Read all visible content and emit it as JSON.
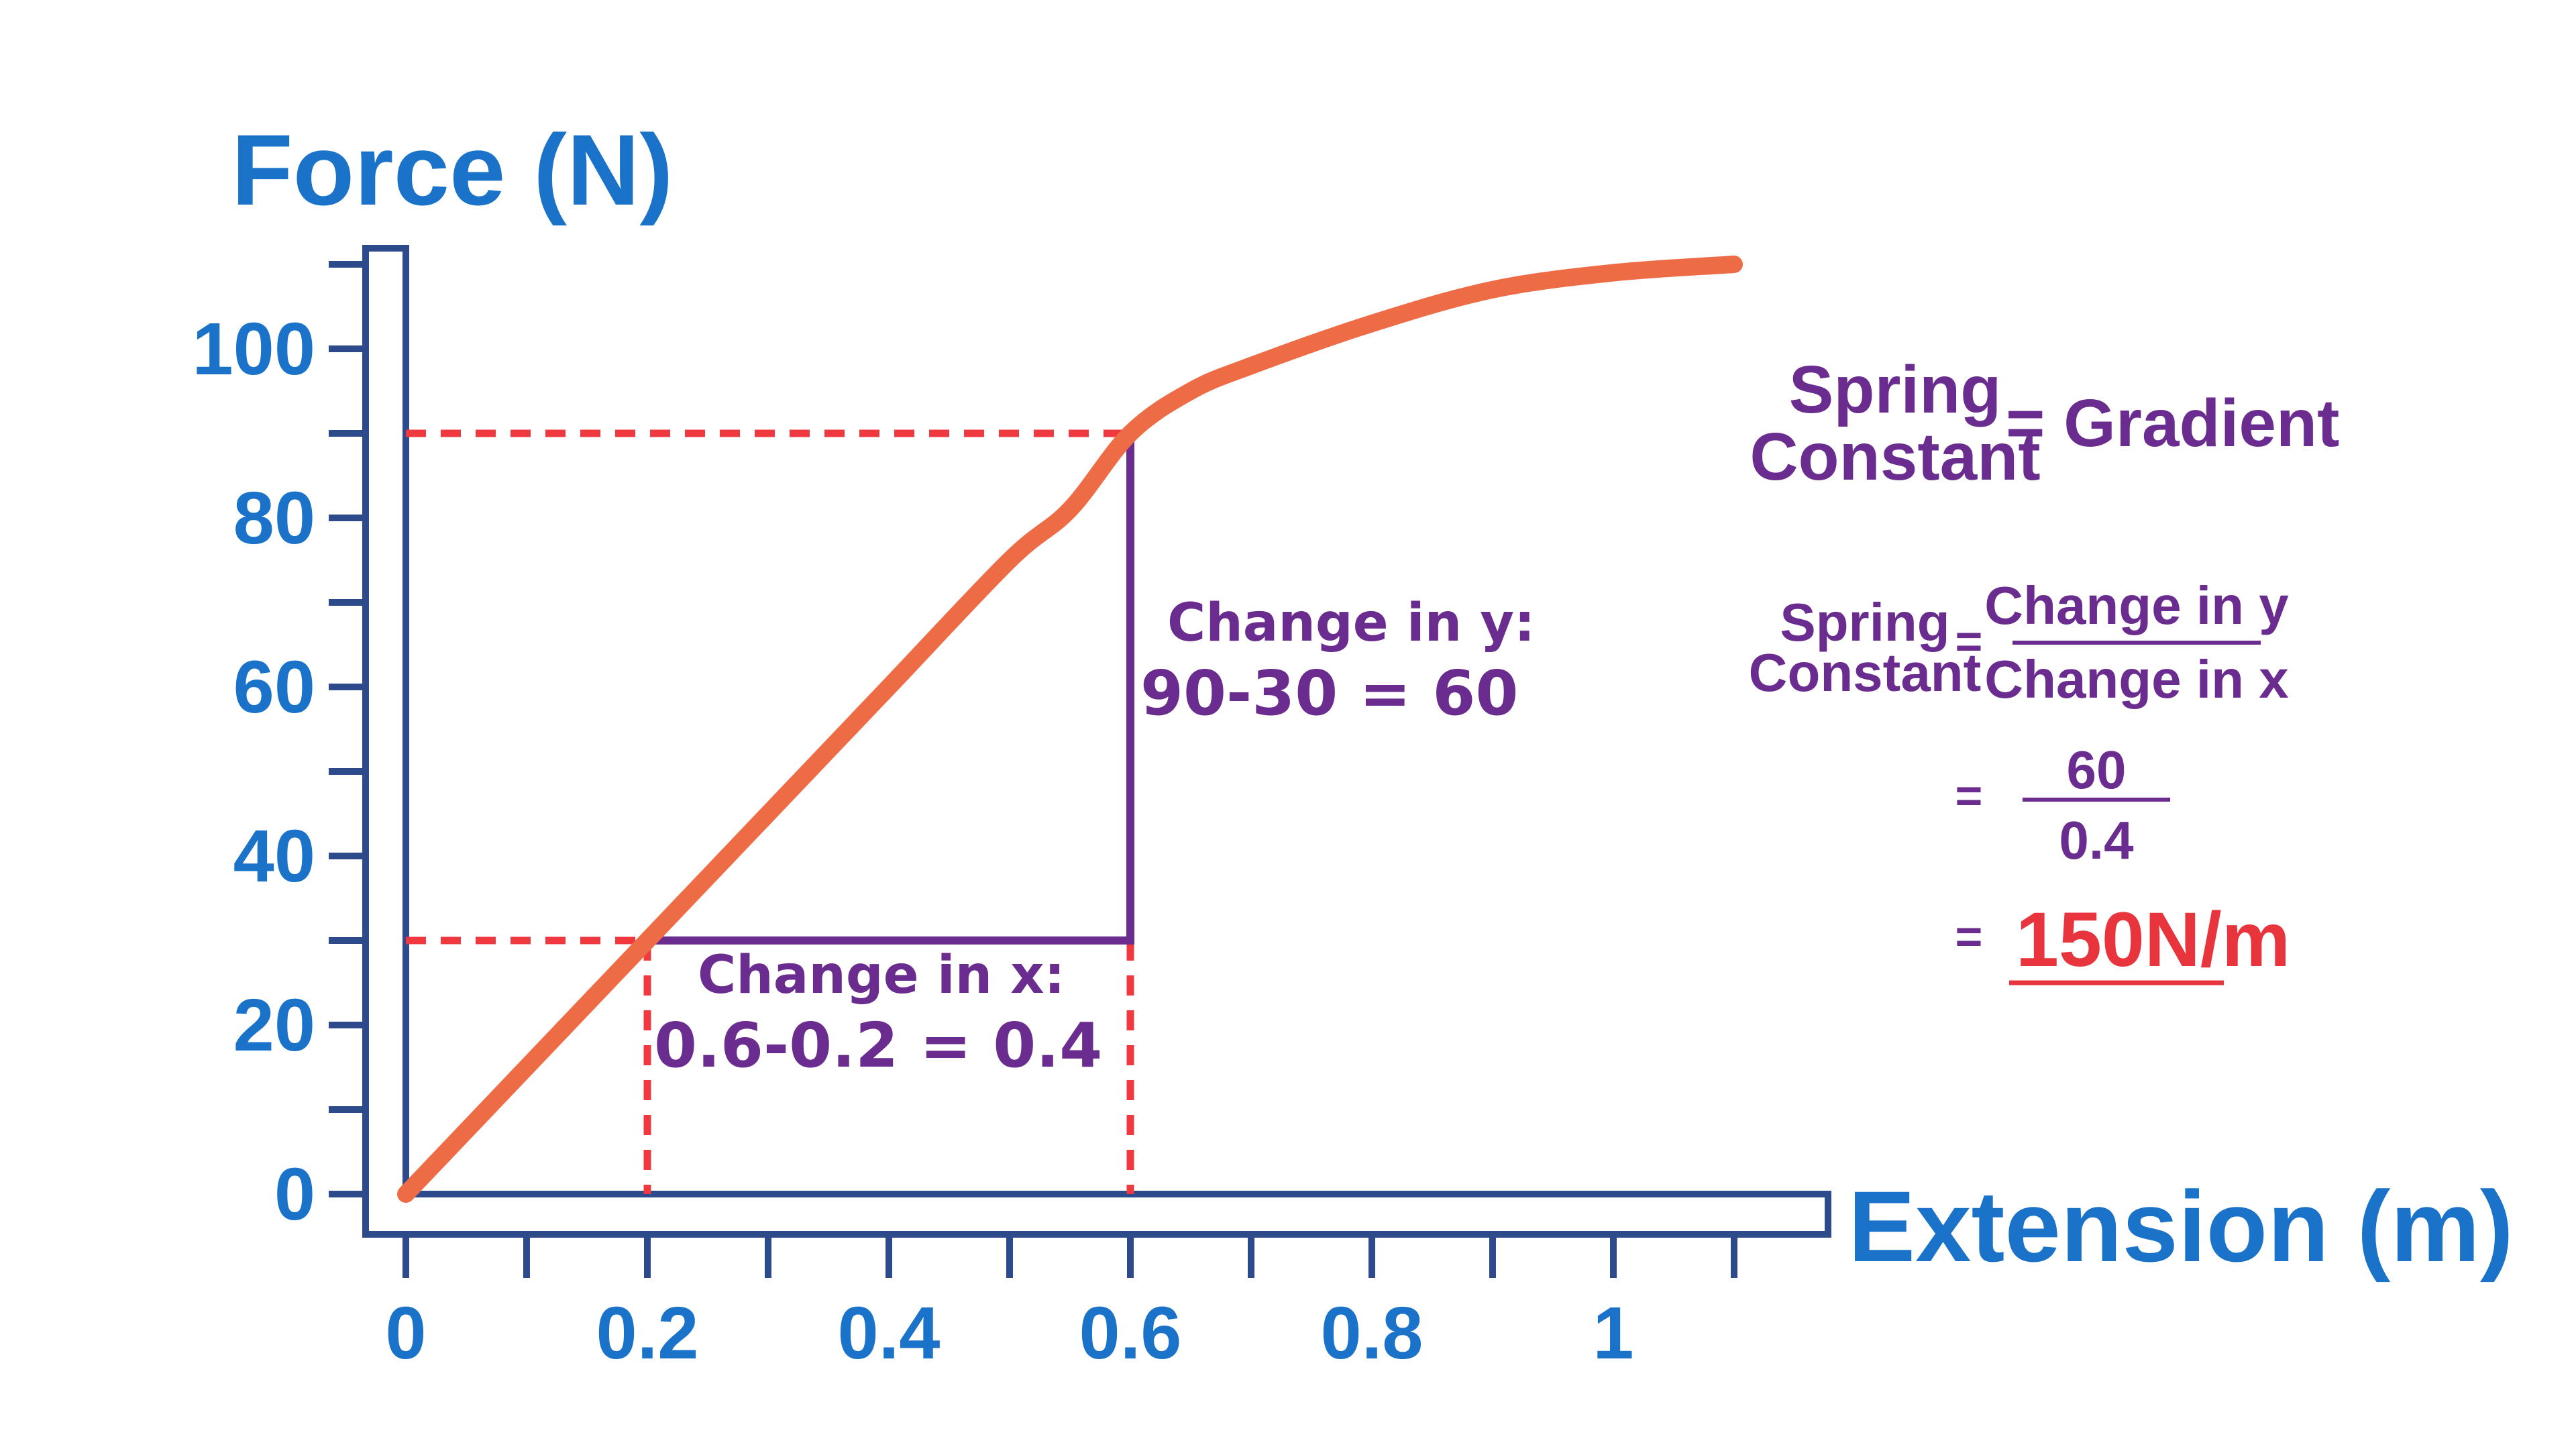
{
  "chart_data": {
    "type": "line",
    "ylabel": "Force (N)",
    "xlabel": "Extension (m)",
    "xlim": [
      0,
      1.1
    ],
    "ylim": [
      0,
      110
    ],
    "x_ticks": [
      0,
      0.2,
      0.4,
      0.6,
      0.8,
      1
    ],
    "x_tick_labels": [
      "0",
      "0.2",
      "0.4",
      "0.6",
      "0.8",
      "1"
    ],
    "y_ticks": [
      0,
      20,
      40,
      60,
      80,
      100
    ],
    "y_tick_labels": [
      "0",
      "20",
      "40",
      "60",
      "80",
      "100"
    ],
    "series": [
      {
        "color": "#ee6c45",
        "x": [
          0,
          0.1,
          0.2,
          0.3,
          0.4,
          0.5,
          0.55,
          0.6,
          0.65,
          0.7,
          0.8,
          0.9,
          1.0,
          1.1
        ],
        "y": [
          0,
          15,
          30,
          45,
          60,
          75,
          81,
          90,
          95,
          98,
          103,
          107,
          109,
          110
        ]
      }
    ],
    "guides": {
      "x1": 0.2,
      "y1": 30,
      "x2": 0.6,
      "y2": 90,
      "dashed_color": "#f0383f",
      "solid_color": "#6a2c8e"
    },
    "annotations": {
      "change_y_title": "Change in y:",
      "change_y_calc": "90-30 = 60",
      "change_x_title": "Change in x:",
      "change_x_calc": "0.6-0.2 = 0.4"
    }
  },
  "formula": {
    "line1_left_top": "Spring",
    "line1_left_bottom": "Constant",
    "line1_right": "= Gradient",
    "line2_left_top": "Spring",
    "line2_left_bottom": "Constant",
    "line2_eq": "=",
    "numerator": "Change in y",
    "denominator": "Change in x",
    "line3_eq": "=",
    "line3_num": "60",
    "line3_den": "0.4",
    "line4_eq": "=",
    "result": "150N/m"
  },
  "colors": {
    "axis": "#2d4a8a",
    "label_blue": "#1a73c9",
    "purple": "#6a2c8e",
    "red": "#f0383f",
    "curve": "#ee6c45"
  }
}
